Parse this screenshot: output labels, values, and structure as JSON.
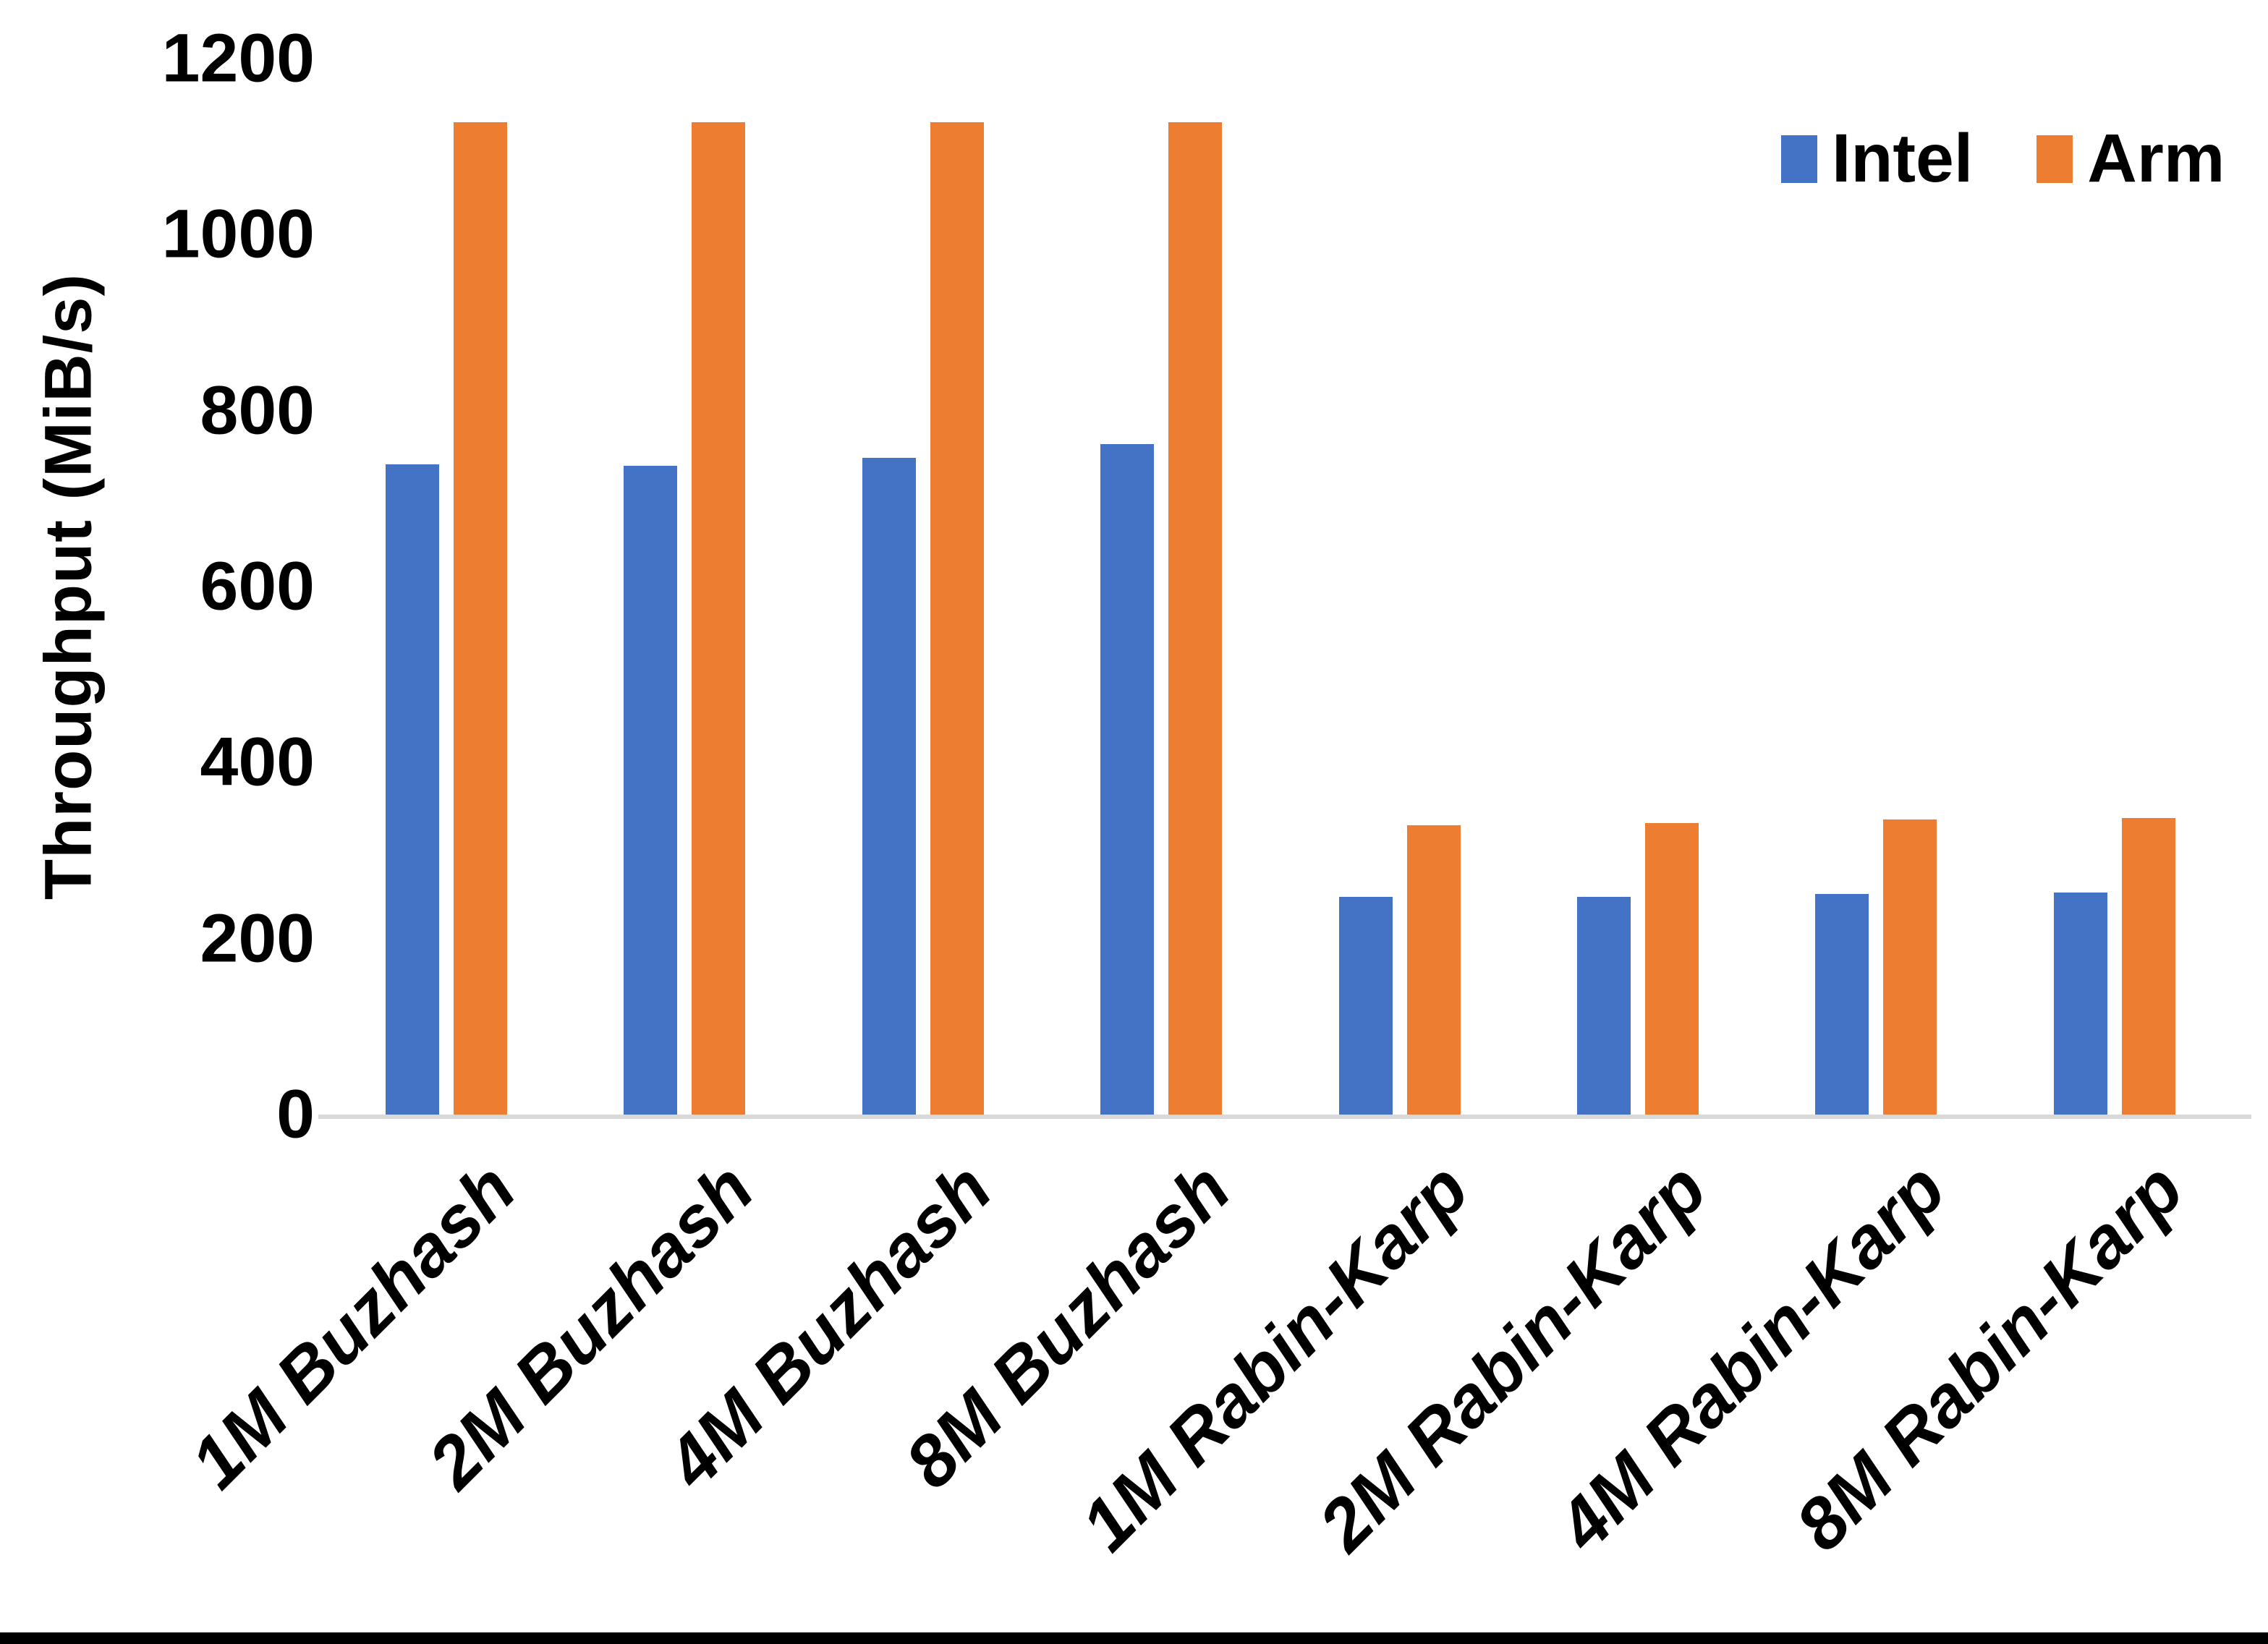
{
  "chart_data": {
    "type": "bar",
    "title": "",
    "categories": [
      "1M Buzhash",
      "2M Buzhash",
      "4M Buzhash",
      "8M Buzhash",
      "1M Rabin-Karp",
      "2M Rabin-Karp",
      "4M Rabin-Karp",
      "8M Rabin-Karp"
    ],
    "series": [
      {
        "name": "Intel",
        "color": "#4472C4",
        "values": [
          739,
          737,
          746,
          762,
          247,
          247,
          251,
          252
        ]
      },
      {
        "name": "Arm",
        "color": "#ED7D31",
        "values": [
          1128,
          1128,
          1128,
          1128,
          329,
          331,
          335,
          337
        ]
      }
    ],
    "xlabel": "",
    "ylabel": "Throughput (MiB/s)",
    "ylim": [
      0,
      1200
    ],
    "yticks": [
      0,
      200,
      400,
      600,
      800,
      1000,
      1200
    ],
    "grid": false,
    "legend_position": "top-right",
    "axis_line_color": "#d9d9d9",
    "text_color": "#000000",
    "background_color": "#ffffff",
    "bottom_border_color": "#000000"
  },
  "legend": {
    "items": [
      {
        "label": "Intel",
        "color": "#4472C4"
      },
      {
        "label": "Arm",
        "color": "#ED7D31"
      }
    ]
  }
}
